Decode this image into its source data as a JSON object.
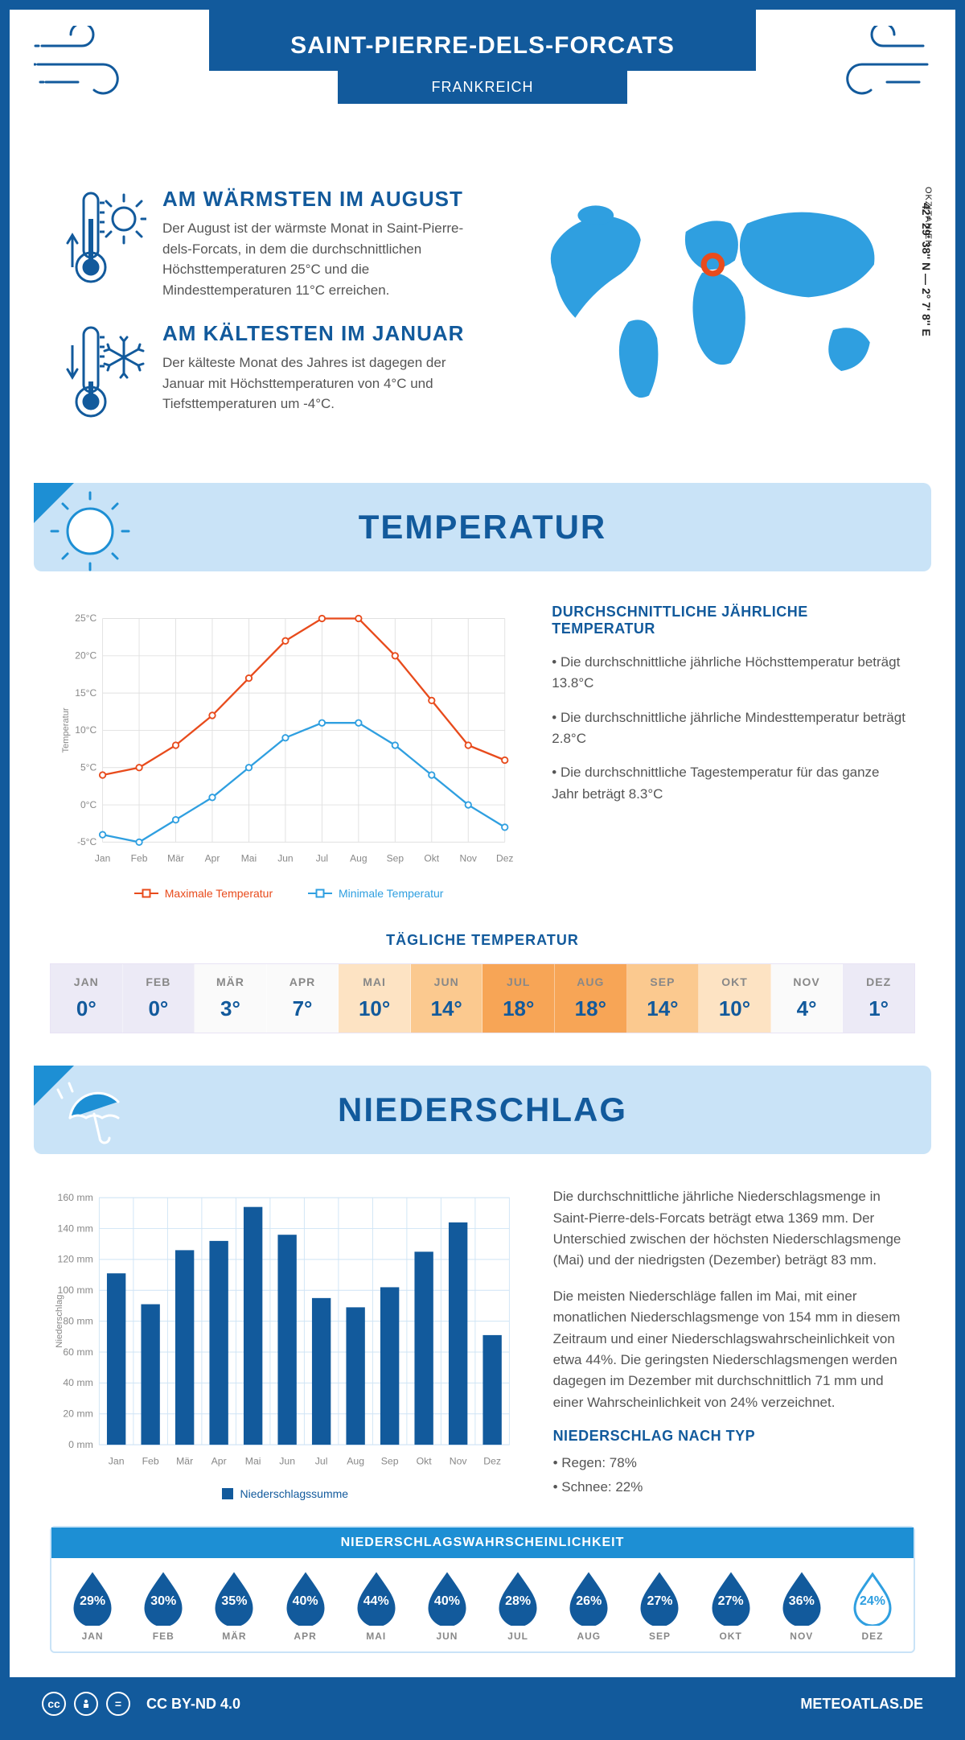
{
  "header": {
    "title": "SAINT-PIERRE-DELS-FORCATS",
    "country": "FRANKREICH"
  },
  "location": {
    "coords": "42° 29' 38'' N — 2° 7' 8'' E",
    "region": "OKZITANIEN",
    "marker_color": "#e84b1c"
  },
  "warmest": {
    "heading": "AM WÄRMSTEN IM AUGUST",
    "text": "Der August ist der wärmste Monat in Saint-Pierre-dels-Forcats, in dem die durchschnittlichen Höchsttemperaturen 25°C und die Mindesttemperaturen 11°C erreichen."
  },
  "coldest": {
    "heading": "AM KÄLTESTEN IM JANUAR",
    "text": "Der kälteste Monat des Jahres ist dagegen der Januar mit Höchsttemperaturen von 4°C und Tiefsttemperaturen um -4°C."
  },
  "temperature_section": {
    "title": "TEMPERATUR",
    "info_heading": "DURCHSCHNITTLICHE JÄHRLICHE TEMPERATUR",
    "bullets": [
      "• Die durchschnittliche jährliche Höchsttemperatur beträgt 13.8°C",
      "• Die durchschnittliche jährliche Mindesttemperatur beträgt 2.8°C",
      "• Die durchschnittliche Tagestemperatur für das ganze Jahr beträgt 8.3°C"
    ],
    "chart": {
      "type": "line",
      "months": [
        "Jan",
        "Feb",
        "Mär",
        "Apr",
        "Mai",
        "Jun",
        "Jul",
        "Aug",
        "Sep",
        "Okt",
        "Nov",
        "Dez"
      ],
      "max_values": [
        4,
        5,
        8,
        12,
        17,
        22,
        25,
        25,
        20,
        14,
        8,
        6
      ],
      "min_values": [
        -4,
        -5,
        -2,
        1,
        5,
        9,
        11,
        11,
        8,
        4,
        0,
        -3
      ],
      "ylim": [
        -5,
        25
      ],
      "ytick_step": 5,
      "yticks": [
        "-5°C",
        "0°C",
        "5°C",
        "10°C",
        "15°C",
        "20°C",
        "25°C"
      ],
      "y_axis_label": "Temperatur",
      "max_color": "#e84b1c",
      "min_color": "#2f9fe0",
      "grid_color": "#e0e0e0",
      "legend_max": "Maximale Temperatur",
      "legend_min": "Minimale Temperatur"
    },
    "daily_title": "TÄGLICHE TEMPERATUR",
    "daily": {
      "months": [
        "JAN",
        "FEB",
        "MÄR",
        "APR",
        "MAI",
        "JUN",
        "JUL",
        "AUG",
        "SEP",
        "OKT",
        "NOV",
        "DEZ"
      ],
      "values": [
        "0°",
        "0°",
        "3°",
        "7°",
        "10°",
        "14°",
        "18°",
        "18°",
        "14°",
        "10°",
        "4°",
        "1°"
      ],
      "colors": [
        "#eceaf6",
        "#eceaf6",
        "#fafafa",
        "#fafafa",
        "#fde3c3",
        "#fbc98f",
        "#f7a556",
        "#f7a556",
        "#fbc98f",
        "#fde3c3",
        "#fafafa",
        "#eceaf6"
      ]
    }
  },
  "precip_section": {
    "title": "NIEDERSCHLAG",
    "paragraphs": [
      "Die durchschnittliche jährliche Niederschlagsmenge in Saint-Pierre-dels-Forcats beträgt etwa 1369 mm. Der Unterschied zwischen der höchsten Niederschlagsmenge (Mai) und der niedrigsten (Dezember) beträgt 83 mm.",
      "Die meisten Niederschläge fallen im Mai, mit einer monatlichen Niederschlagsmenge von 154 mm in diesem Zeitraum und einer Niederschlagswahrscheinlichkeit von etwa 44%. Die geringsten Niederschlagsmengen werden dagegen im Dezember mit durchschnittlich 71 mm und einer Wahrscheinlichkeit von 24% verzeichnet."
    ],
    "type_heading": "NIEDERSCHLAG NACH TYP",
    "type_bullets": [
      "• Regen: 78%",
      "• Schnee: 22%"
    ],
    "chart": {
      "type": "bar",
      "months": [
        "Jan",
        "Feb",
        "Mär",
        "Apr",
        "Mai",
        "Jun",
        "Jul",
        "Aug",
        "Sep",
        "Okt",
        "Nov",
        "Dez"
      ],
      "values": [
        111,
        91,
        126,
        132,
        154,
        136,
        95,
        89,
        102,
        125,
        144,
        71
      ],
      "ylim": [
        0,
        160
      ],
      "ytick_step": 20,
      "yticks": [
        "0 mm",
        "20 mm",
        "40 mm",
        "60 mm",
        "80 mm",
        "100 mm",
        "120 mm",
        "140 mm",
        "160 mm"
      ],
      "y_axis_label": "Niederschlag",
      "bar_color": "#125a9c",
      "grid_color": "#cfe4f5",
      "legend": "Niederschlagssumme"
    },
    "probability": {
      "title": "NIEDERSCHLAGSWAHRSCHEINLICHKEIT",
      "months": [
        "JAN",
        "FEB",
        "MÄR",
        "APR",
        "MAI",
        "JUN",
        "JUL",
        "AUG",
        "SEP",
        "OKT",
        "NOV",
        "DEZ"
      ],
      "values": [
        "29%",
        "30%",
        "35%",
        "40%",
        "44%",
        "40%",
        "28%",
        "26%",
        "27%",
        "27%",
        "36%",
        "24%"
      ],
      "min_index": 11,
      "fill_color": "#125a9c",
      "outline_color": "#2f9fe0"
    }
  },
  "footer": {
    "license": "CC BY-ND 4.0",
    "site": "METEOATLAS.DE"
  },
  "palette": {
    "primary": "#125a9c",
    "light_blue": "#c9e3f7",
    "mid_blue": "#1d8fd4",
    "sky": "#2f9fe0"
  }
}
